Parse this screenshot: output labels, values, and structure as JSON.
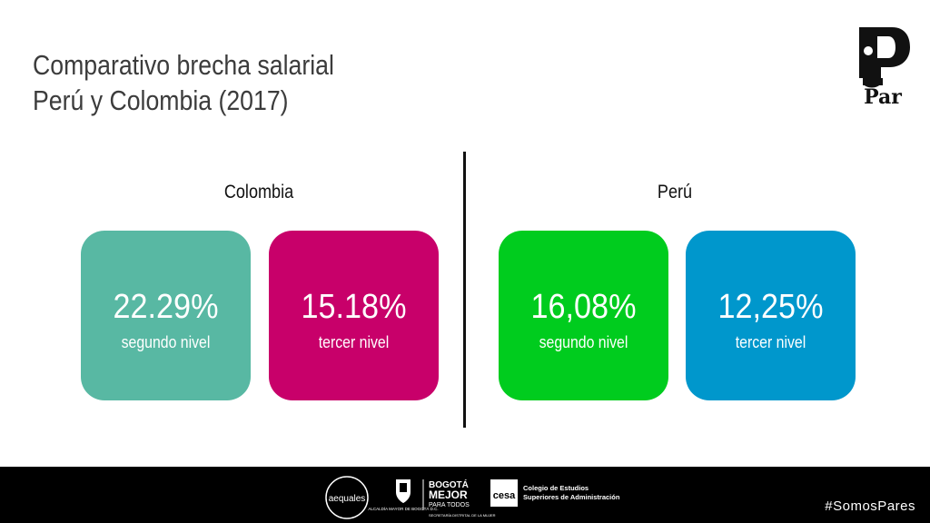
{
  "title": {
    "line1": "Comparativo brecha salarial",
    "line2": "Perú y Colombia (2017)"
  },
  "brand": {
    "logo_text": "Par"
  },
  "groups": [
    {
      "country": "Colombia",
      "cards": [
        {
          "value": "22.29%",
          "label": "segundo nivel",
          "color": "#58b8a3"
        },
        {
          "value": "15.18%",
          "label": "tercer nivel",
          "color": "#c8006a"
        }
      ]
    },
    {
      "country": "Perú",
      "cards": [
        {
          "value": "16,08%",
          "label": "segundo nivel",
          "color": "#00cc1e"
        },
        {
          "value": "12,25%",
          "label": "tercer nivel",
          "color": "#0097cc"
        }
      ]
    }
  ],
  "footer": {
    "hashtag": "#SomosPares",
    "logos": {
      "aequales": "aequales",
      "alcaldia": "ALCALDÍA MAYOR DE BOGOTÁ D.C.",
      "bogota_line1": "BOGOTÁ",
      "bogota_line2": "MEJOR",
      "bogota_line3": "PARA TODOS",
      "secretaria": "SECRETARÍA DISTRITAL DE LA MUJER",
      "cesa_mark": "cesa",
      "cesa_line1": "Colegio de Estudios",
      "cesa_line2": "Superiores de Administración"
    }
  }
}
